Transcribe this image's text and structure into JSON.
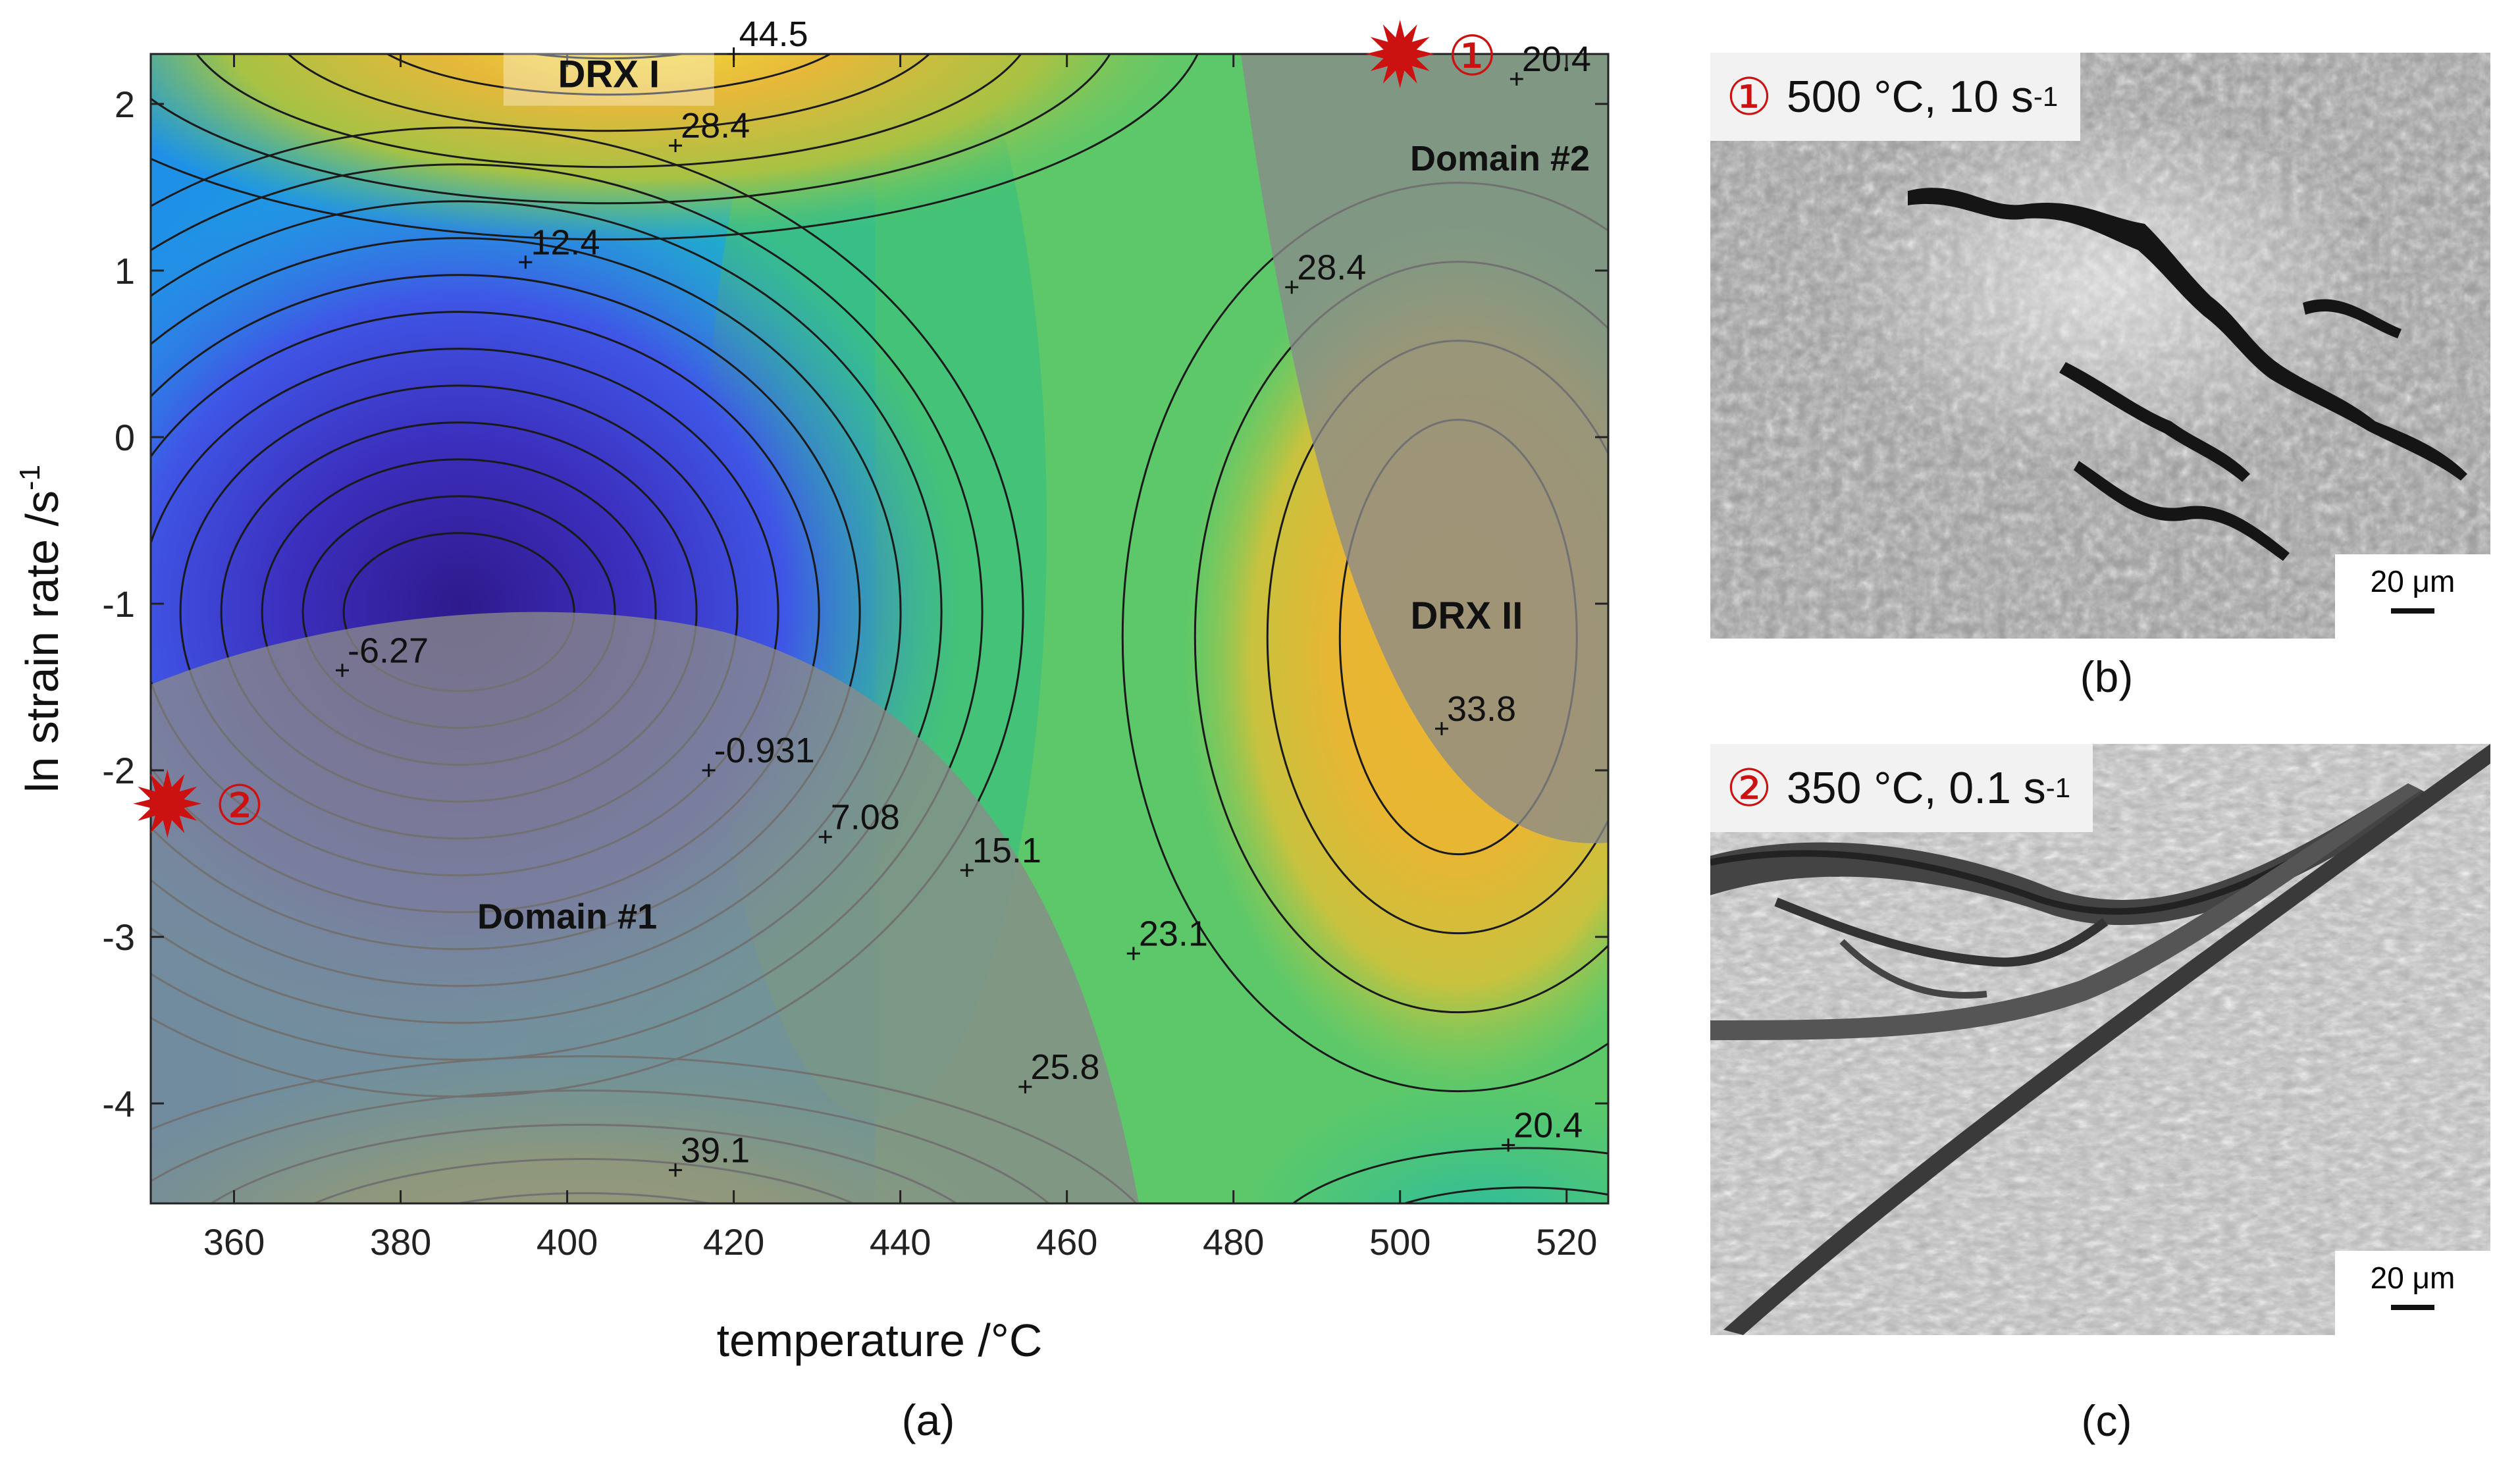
{
  "panel_a": {
    "caption": "(a)",
    "chart_data": {
      "type": "contour",
      "xlabel": "temperature /°C",
      "ylabel_main": "ln strain rate /s",
      "ylabel_sup": "-1",
      "xlim": [
        350,
        525
      ],
      "ylim": [
        -4.6,
        2.3
      ],
      "x_ticks": [
        360,
        380,
        400,
        420,
        440,
        460,
        480,
        500,
        520
      ],
      "y_ticks": [
        2,
        1,
        0,
        -1,
        -2,
        -3,
        -4
      ],
      "contour_labels": [
        {
          "text": "44.5",
          "x": 420,
          "y": 2.3
        },
        {
          "text": "28.4",
          "x": 413,
          "y": 1.75
        },
        {
          "text": "12.4",
          "x": 395,
          "y": 1.05
        },
        {
          "text": "-6.27",
          "x": 373,
          "y": -1.4
        },
        {
          "text": "-0.931",
          "x": 417,
          "y": -2.0
        },
        {
          "text": "7.08",
          "x": 431,
          "y": -2.4
        },
        {
          "text": "15.1",
          "x": 448,
          "y": -2.6
        },
        {
          "text": "23.1",
          "x": 468,
          "y": -3.1
        },
        {
          "text": "25.8",
          "x": 455,
          "y": -3.9
        },
        {
          "text": "39.1",
          "x": 413,
          "y": -4.4
        },
        {
          "text": "28.4",
          "x": 487,
          "y": 0.9
        },
        {
          "text": "33.8",
          "x": 505,
          "y": -1.75
        },
        {
          "text": "20.4",
          "x": 514,
          "y": 2.15
        },
        {
          "text": "20.4",
          "x": 513,
          "y": -4.25
        }
      ],
      "regions": [
        {
          "label": "DRX I",
          "x": 405,
          "y": 2.1
        },
        {
          "label": "DRX II",
          "x": 508,
          "y": -1.15
        },
        {
          "label": "Domain #1",
          "x": 400,
          "y": -2.95
        },
        {
          "label": "Domain #2",
          "x": 512,
          "y": 1.6
        }
      ],
      "markers": [
        {
          "symbol": "①",
          "x": 500,
          "y": 2.3
        },
        {
          "symbol": "②",
          "x": 352,
          "y": -2.2
        }
      ]
    }
  },
  "panel_b": {
    "caption": "(b)",
    "marker": "①",
    "condition_main": "500 °C, 10 s",
    "condition_sup": "-1",
    "scale_bar": "20 μm"
  },
  "panel_c": {
    "caption": "(c)",
    "marker": "②",
    "condition_main": "350 °C, 0.1 s",
    "condition_sup": "-1",
    "scale_bar": "20 μm"
  },
  "colors": {
    "accent_red": "#cc1111",
    "domain_overlay": "#8a8a8a"
  }
}
